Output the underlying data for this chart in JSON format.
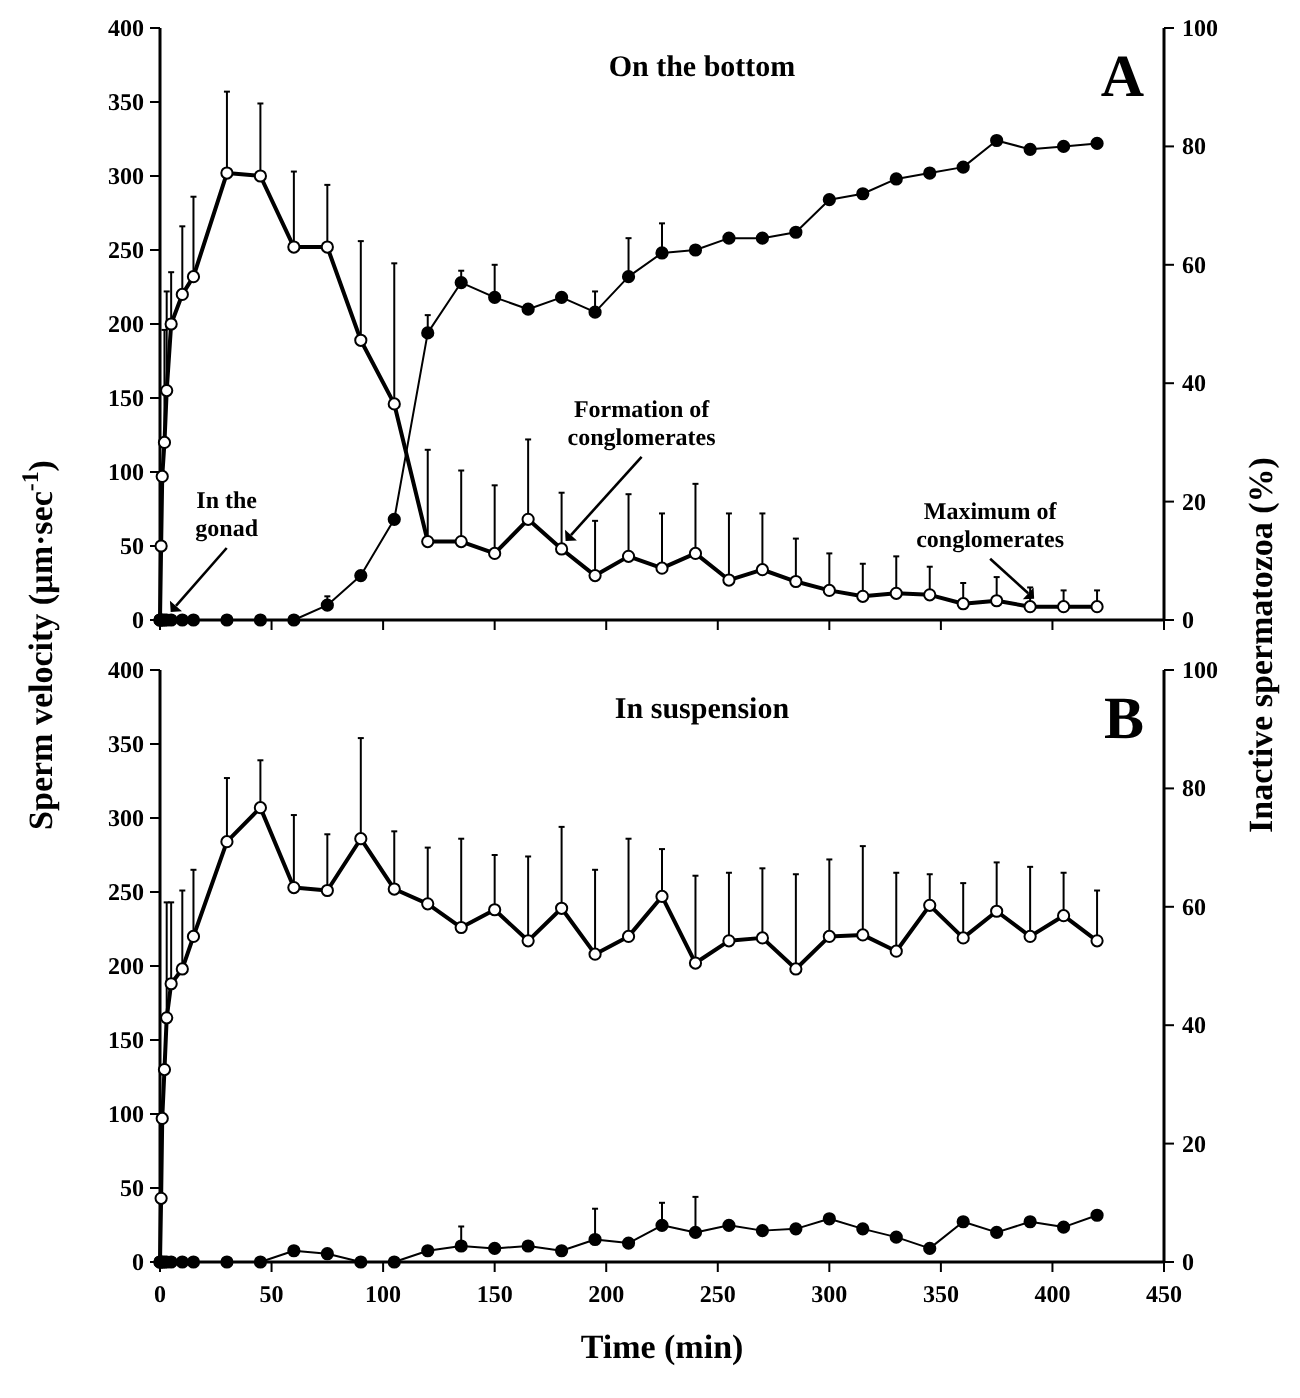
{
  "chart_data": [
    {
      "type": "line",
      "title": "On the bottom",
      "ylabel": "Sperm velocity (µm·sec$^{-1}$)",
      "y2label": "Inactive spermatozoa (%)",
      "tick_labels": "y",
      "grid": false,
      "marker": "circle",
      "annotations": [
        "A",
        {
          "text": "In the gonad",
          "x": 3,
          "y": 0
        },
        {
          "text": "Formation of conglomerates",
          "x": 180,
          "y": 48
        },
        {
          "text": "Maximum of conglomerates",
          "x": 390,
          "y": 9
        }
      ],
      "x": [
        0,
        0.5,
        1,
        2,
        3,
        5,
        10,
        15,
        30,
        45,
        60,
        75,
        90,
        105,
        120,
        135,
        150,
        165,
        180,
        195,
        210,
        225,
        240,
        255,
        270,
        285,
        300,
        315,
        330,
        345,
        360,
        375,
        390,
        405,
        420
      ],
      "xlim": [
        0,
        450
      ],
      "xticks": [
        0,
        50,
        100,
        150,
        200,
        250,
        300,
        350,
        400,
        450
      ],
      "ylim": [
        0,
        400
      ],
      "yticks": [
        0,
        50,
        100,
        150,
        200,
        250,
        300,
        350,
        400
      ],
      "y2lim": [
        0,
        100
      ],
      "y2ticks": [
        0,
        20,
        40,
        60,
        80,
        100
      ],
      "series": [
        {
          "color": "#000000",
          "values": [
            0,
            50,
            97,
            120,
            155,
            200,
            220,
            232,
            302,
            300,
            252,
            252,
            189,
            146,
            53,
            53,
            45,
            68,
            48,
            30,
            43,
            35,
            45,
            27,
            34,
            26,
            20,
            16,
            18,
            17,
            11,
            13,
            9,
            9,
            9
          ],
          "errors": [
            null,
            null,
            null,
            [
              120,
              196
            ],
            [
              155,
              222
            ],
            [
              200,
              235
            ],
            [
              220,
              266
            ],
            [
              232,
              286
            ],
            [
              302,
              357
            ],
            [
              300,
              349
            ],
            [
              252,
              303
            ],
            [
              252,
              294
            ],
            [
              189,
              256
            ],
            [
              146,
              241
            ],
            [
              53,
              115
            ],
            [
              53,
              101
            ],
            [
              45,
              91
            ],
            [
              68,
              122
            ],
            [
              48,
              86
            ],
            [
              30,
              67
            ],
            [
              43,
              85
            ],
            [
              35,
              72
            ],
            [
              45,
              92
            ],
            [
              27,
              72
            ],
            [
              34,
              72
            ],
            [
              26,
              55
            ],
            [
              20,
              45
            ],
            [
              16,
              38
            ],
            [
              18,
              43
            ],
            [
              17,
              36
            ],
            [
              11,
              25
            ],
            [
              13,
              29
            ],
            [
              9,
              22
            ],
            [
              9,
              20
            ],
            [
              9,
              20
            ]
          ]
        },
        {
          "color": "#000000",
          "axis": "y2",
          "values": [
            0,
            0,
            0,
            0,
            0,
            0,
            0,
            0,
            0,
            0,
            0,
            2.5,
            7.5,
            17,
            48.5,
            57,
            54.5,
            52.5,
            54.5,
            52,
            58,
            62,
            62.5,
            64.5,
            64.5,
            65.5,
            71,
            72,
            74.5,
            75.5,
            76.5,
            81,
            79.5,
            80,
            80.5
          ],
          "errors": [
            null,
            null,
            null,
            null,
            null,
            null,
            null,
            null,
            null,
            null,
            null,
            [
              2.5,
              4
            ],
            null,
            null,
            [
              48.5,
              51.5
            ],
            [
              57,
              59
            ],
            [
              54.5,
              60
            ],
            null,
            null,
            [
              52,
              55.5
            ],
            [
              58,
              64.5
            ],
            [
              62,
              67
            ],
            null,
            null,
            null,
            null,
            null,
            null,
            null,
            null,
            null,
            null,
            null,
            null,
            null
          ]
        }
      ]
    },
    {
      "type": "line",
      "title": "In suspension",
      "xlabel": "Time (min)",
      "grid": false,
      "marker": "circle",
      "annotations": [
        "B"
      ],
      "x": [
        0,
        0.5,
        1,
        2,
        3,
        5,
        10,
        15,
        30,
        45,
        60,
        75,
        90,
        105,
        120,
        135,
        150,
        165,
        180,
        195,
        210,
        225,
        240,
        255,
        270,
        285,
        300,
        315,
        330,
        345,
        360,
        375,
        390,
        405,
        420
      ],
      "xlim": [
        0,
        450
      ],
      "xticks": [
        0,
        50,
        100,
        150,
        200,
        250,
        300,
        350,
        400,
        450
      ],
      "ylim": [
        0,
        400
      ],
      "yticks": [
        0,
        50,
        100,
        150,
        200,
        250,
        300,
        350,
        400
      ],
      "y2lim": [
        0,
        100
      ],
      "y2ticks": [
        0,
        20,
        40,
        60,
        80,
        100
      ],
      "series": [
        {
          "color": "#000000",
          "values": [
            0,
            43,
            97,
            130,
            165,
            188,
            198,
            220,
            284,
            307,
            253,
            251,
            286,
            252,
            242,
            226,
            238,
            217,
            239,
            208,
            220,
            247,
            202,
            217,
            219,
            198,
            220,
            221,
            210,
            241,
            219,
            237,
            220,
            234,
            217
          ],
          "errors": [
            null,
            null,
            null,
            null,
            [
              165,
              243
            ],
            [
              188,
              243
            ],
            [
              198,
              251
            ],
            [
              220,
              265
            ],
            [
              284,
              327
            ],
            [
              307,
              339
            ],
            [
              253,
              302
            ],
            [
              251,
              289
            ],
            [
              286,
              354
            ],
            [
              252,
              291
            ],
            [
              242,
              280
            ],
            [
              226,
              286
            ],
            [
              238,
              275
            ],
            [
              217,
              274
            ],
            [
              239,
              294
            ],
            [
              208,
              265
            ],
            [
              220,
              286
            ],
            [
              247,
              279
            ],
            [
              202,
              261
            ],
            [
              217,
              263
            ],
            [
              219,
              266
            ],
            [
              198,
              262
            ],
            [
              220,
              272
            ],
            [
              221,
              281
            ],
            [
              210,
              263
            ],
            [
              241,
              262
            ],
            [
              219,
              256
            ],
            [
              237,
              270
            ],
            [
              220,
              267
            ],
            [
              234,
              263
            ],
            [
              217,
              251
            ]
          ]
        },
        {
          "color": "#000000",
          "axis": "y2",
          "values": [
            0,
            0,
            0,
            0,
            0,
            0,
            0,
            0,
            0,
            0,
            1.9,
            1.4,
            0,
            0,
            1.9,
            2.7,
            2.3,
            2.7,
            1.9,
            3.8,
            3.2,
            6.2,
            5,
            6.2,
            5.3,
            5.6,
            7.3,
            5.6,
            4.2,
            2.3,
            6.8,
            5,
            6.8,
            5.9,
            7.9
          ],
          "errors": [
            null,
            null,
            null,
            null,
            null,
            null,
            null,
            null,
            null,
            null,
            null,
            null,
            null,
            null,
            null,
            [
              2.7,
              6
            ],
            null,
            null,
            null,
            [
              3.8,
              9
            ],
            null,
            [
              6.2,
              10
            ],
            [
              5,
              11
            ],
            null,
            null,
            null,
            null,
            null,
            null,
            null,
            null,
            null,
            null,
            null,
            null
          ]
        }
      ]
    }
  ]
}
